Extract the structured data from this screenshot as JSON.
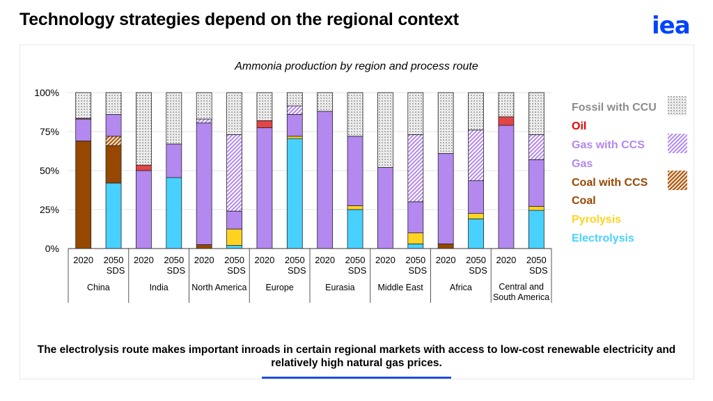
{
  "header": {
    "title": "Technology strategies depend on the regional context",
    "logo_text": "iea"
  },
  "caption": "The electrolysis route makes important inroads in certain regional markets with access to low-cost renewable electricity and relatively high natural gas prices.",
  "colors": {
    "electrolysis": "#48d1ff",
    "pyrolysis": "#ffd320",
    "coal": "#964800",
    "coal_ccs": "#b35a10",
    "gas": "#b388ef",
    "gas_ccs": "#b388ef",
    "oil": "#e34444",
    "fossil_ccu": "#cfcfcf",
    "brand": "#0044ff"
  },
  "chart_data": {
    "type": "bar",
    "stacked": true,
    "normalized": true,
    "title": "Ammonia production by region and process route",
    "xlabel": "",
    "ylabel": "",
    "ylim": [
      0,
      100
    ],
    "yticks": [
      "0%",
      "25%",
      "50%",
      "75%",
      "100%"
    ],
    "grid": true,
    "legend_position": "right",
    "legend": [
      {
        "key": "fossil_ccu",
        "label": "Fossil with CCU",
        "color": "#8c8c8c",
        "pattern": "dots"
      },
      {
        "key": "oil",
        "label": "Oil",
        "color": "#e60000",
        "pattern": null
      },
      {
        "key": "gas_ccs",
        "label": "Gas with CCS",
        "color": "#b388ef",
        "pattern": "hatch"
      },
      {
        "key": "gas",
        "label": "Gas",
        "color": "#b388ef",
        "pattern": null
      },
      {
        "key": "coal_ccs",
        "label": "Coal with CCS",
        "color": "#964800",
        "pattern": "hatch"
      },
      {
        "key": "coal",
        "label": "Coal",
        "color": "#964800",
        "pattern": null
      },
      {
        "key": "pyrolysis",
        "label": "Pyrolysis",
        "color": "#ffd320",
        "pattern": null
      },
      {
        "key": "electrolysis",
        "label": "Electrolysis",
        "color": "#48d1ff",
        "pattern": null
      }
    ],
    "stack_order": [
      "electrolysis",
      "pyrolysis",
      "coal",
      "coal_ccs",
      "gas",
      "gas_ccs",
      "oil",
      "fossil_ccu"
    ],
    "groups": [
      {
        "region": "China",
        "bars": [
          {
            "label": "2020",
            "sublabel": "",
            "values": {
              "electrolysis": 0,
              "pyrolysis": 0,
              "coal": 69,
              "coal_ccs": 0,
              "gas": 14,
              "gas_ccs": 0,
              "oil": 0.5,
              "fossil_ccu": 16.5
            }
          },
          {
            "label": "2050",
            "sublabel": "SDS",
            "values": {
              "electrolysis": 42,
              "pyrolysis": 0,
              "coal": 24,
              "coal_ccs": 6,
              "gas": 14,
              "gas_ccs": 0,
              "oil": 0,
              "fossil_ccu": 14
            }
          }
        ]
      },
      {
        "region": "India",
        "bars": [
          {
            "label": "2020",
            "sublabel": "",
            "values": {
              "electrolysis": 0,
              "pyrolysis": 0,
              "coal": 0,
              "coal_ccs": 0,
              "gas": 50,
              "gas_ccs": 0,
              "oil": 3.5,
              "fossil_ccu": 46.5
            }
          },
          {
            "label": "2050",
            "sublabel": "SDS",
            "values": {
              "electrolysis": 45.5,
              "pyrolysis": 0,
              "coal": 0,
              "coal_ccs": 0,
              "gas": 21.5,
              "gas_ccs": 0,
              "oil": 0,
              "fossil_ccu": 33
            }
          }
        ]
      },
      {
        "region": "North America",
        "bars": [
          {
            "label": "2020",
            "sublabel": "",
            "values": {
              "electrolysis": 0,
              "pyrolysis": 0,
              "coal": 2.5,
              "coal_ccs": 0,
              "gas": 78,
              "gas_ccs": 2.5,
              "oil": 0,
              "fossil_ccu": 17
            }
          },
          {
            "label": "2050",
            "sublabel": "SDS",
            "values": {
              "electrolysis": 2,
              "pyrolysis": 10.5,
              "coal": 0,
              "coal_ccs": 0,
              "gas": 11.5,
              "gas_ccs": 49,
              "oil": 0,
              "fossil_ccu": 27
            }
          }
        ]
      },
      {
        "region": "Europe",
        "bars": [
          {
            "label": "2020",
            "sublabel": "",
            "values": {
              "electrolysis": 0,
              "pyrolysis": 0,
              "coal": 0,
              "coal_ccs": 0,
              "gas": 77.5,
              "gas_ccs": 0,
              "oil": 4.5,
              "fossil_ccu": 18
            }
          },
          {
            "label": "2050",
            "sublabel": "SDS",
            "values": {
              "electrolysis": 70.5,
              "pyrolysis": 1.5,
              "coal": 0,
              "coal_ccs": 0,
              "gas": 14,
              "gas_ccs": 5.5,
              "oil": 0,
              "fossil_ccu": 8.5
            }
          }
        ]
      },
      {
        "region": "Eurasia",
        "bars": [
          {
            "label": "2020",
            "sublabel": "",
            "values": {
              "electrolysis": 0,
              "pyrolysis": 0,
              "coal": 0,
              "coal_ccs": 0,
              "gas": 88,
              "gas_ccs": 0,
              "oil": 0,
              "fossil_ccu": 12
            }
          },
          {
            "label": "2050",
            "sublabel": "SDS",
            "values": {
              "electrolysis": 25,
              "pyrolysis": 2.5,
              "coal": 0,
              "coal_ccs": 0,
              "gas": 44.5,
              "gas_ccs": 0,
              "oil": 0,
              "fossil_ccu": 28
            }
          }
        ]
      },
      {
        "region": "Middle East",
        "bars": [
          {
            "label": "2020",
            "sublabel": "",
            "values": {
              "electrolysis": 0,
              "pyrolysis": 0,
              "coal": 0,
              "coal_ccs": 0,
              "gas": 52,
              "gas_ccs": 0,
              "oil": 0,
              "fossil_ccu": 48
            }
          },
          {
            "label": "2050",
            "sublabel": "SDS",
            "values": {
              "electrolysis": 3,
              "pyrolysis": 7,
              "coal": 0,
              "coal_ccs": 0,
              "gas": 20,
              "gas_ccs": 43,
              "oil": 0,
              "fossil_ccu": 27
            }
          }
        ]
      },
      {
        "region": "Africa",
        "bars": [
          {
            "label": "2020",
            "sublabel": "",
            "values": {
              "electrolysis": 0,
              "pyrolysis": 0,
              "coal": 3,
              "coal_ccs": 0,
              "gas": 58,
              "gas_ccs": 0,
              "oil": 0,
              "fossil_ccu": 39
            }
          },
          {
            "label": "2050",
            "sublabel": "SDS",
            "values": {
              "electrolysis": 19,
              "pyrolysis": 3.5,
              "coal": 0,
              "coal_ccs": 0,
              "gas": 21,
              "gas_ccs": 32.5,
              "oil": 0,
              "fossil_ccu": 24
            }
          }
        ]
      },
      {
        "region": "Central and South America",
        "bars": [
          {
            "label": "2020",
            "sublabel": "",
            "values": {
              "electrolysis": 0,
              "pyrolysis": 0,
              "coal": 0,
              "coal_ccs": 0,
              "gas": 79,
              "gas_ccs": 0,
              "oil": 5.5,
              "fossil_ccu": 15.5
            }
          },
          {
            "label": "2050",
            "sublabel": "SDS",
            "values": {
              "electrolysis": 24.5,
              "pyrolysis": 2.5,
              "coal": 0,
              "coal_ccs": 0,
              "gas": 30,
              "gas_ccs": 16,
              "oil": 0,
              "fossil_ccu": 27
            }
          }
        ]
      }
    ],
    "region_labels": [
      "China",
      "India",
      "North America",
      "Europe",
      "Eurasia",
      "Middle East",
      "Africa",
      "Central and\nSouth America"
    ]
  }
}
